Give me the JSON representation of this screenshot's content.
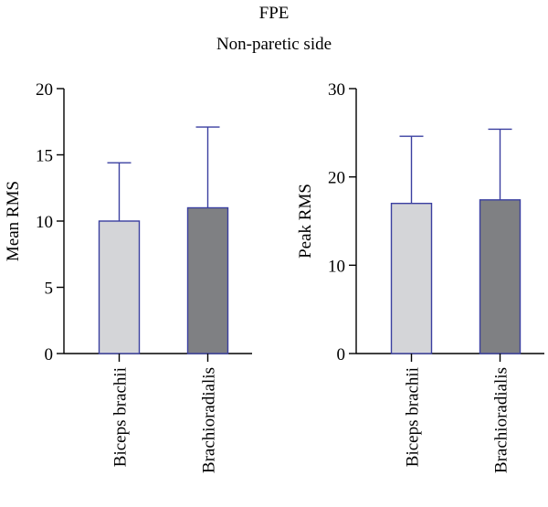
{
  "figure": {
    "title": "FPE",
    "subtitle": "Non-paretic side"
  },
  "colors": {
    "axis": "#000000",
    "bar_outline": "#3a3fa0",
    "error_bar": "#3a3fa0",
    "light_bar": "#d4d5d8",
    "dark_bar": "#7f8083"
  },
  "chart_data": [
    {
      "type": "bar",
      "categories": [
        "Biceps brachii",
        "Brachioradialis"
      ],
      "values": [
        10.0,
        11.0
      ],
      "errors_upper": [
        4.4,
        6.1
      ],
      "ylabel": "Mean RMS",
      "xlabel": "",
      "ylim": [
        0,
        20
      ],
      "yticks": [
        0,
        5,
        10,
        15,
        20
      ],
      "bar_colors": [
        "#d4d5d8",
        "#7f8083"
      ],
      "grid": false
    },
    {
      "type": "bar",
      "categories": [
        "Biceps brachii",
        "Brachioradialis"
      ],
      "values": [
        17.0,
        17.4
      ],
      "errors_upper": [
        7.6,
        8.0
      ],
      "ylabel": "Peak RMS",
      "xlabel": "",
      "ylim": [
        0,
        30
      ],
      "yticks": [
        0,
        10,
        20,
        30
      ],
      "bar_colors": [
        "#d4d5d8",
        "#7f8083"
      ],
      "grid": false
    }
  ]
}
